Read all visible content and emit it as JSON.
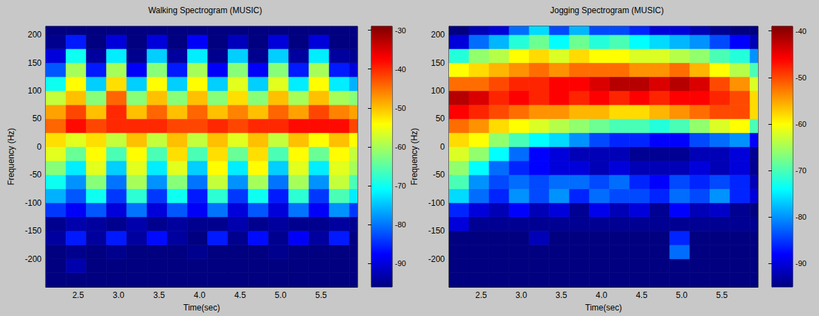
{
  "chart_data": [
    {
      "type": "heatmap",
      "title": "Walking Spectrogram (MUSIC)",
      "xlabel": "Time(sec)",
      "ylabel": "Frequency (Hz)",
      "xlim": [
        2.1,
        5.95
      ],
      "xticks": [
        {
          "value": 2.5,
          "label": "2.5"
        },
        {
          "value": 3,
          "label": "3.0"
        },
        {
          "value": 3.5,
          "label": "3.5"
        },
        {
          "value": 4,
          "label": "4.0"
        },
        {
          "value": 4.5,
          "label": "4.5"
        },
        {
          "value": 5,
          "label": "5.0"
        },
        {
          "value": 5.5,
          "label": "5.5"
        }
      ],
      "ylim": [
        -250,
        215
      ],
      "yticks": [
        -200,
        -150,
        -100,
        -50,
        0,
        50,
        100,
        150,
        200
      ],
      "grid": false,
      "x_bins": [
        2.1,
        2.35,
        2.6,
        2.85,
        3.1,
        3.35,
        3.6,
        3.85,
        4.1,
        4.35,
        4.6,
        4.85,
        5.1,
        5.35,
        5.6,
        5.85,
        5.95
      ],
      "y_bins": [
        -250,
        -225,
        -200,
        -175,
        -150,
        -125,
        -100,
        -75,
        -50,
        -25,
        0,
        25,
        50,
        75,
        100,
        125,
        150,
        175,
        200,
        225
      ],
      "z": [
        [
          -96,
          -96,
          -96,
          -96,
          -96,
          -96,
          -96,
          -96,
          -96,
          -96,
          -96,
          -96,
          -96,
          -96,
          -96,
          -96
        ],
        [
          -96,
          -93,
          -96,
          -96,
          -96,
          -96,
          -96,
          -96,
          -96,
          -96,
          -96,
          -96,
          -96,
          -96,
          -96,
          -96
        ],
        [
          -96,
          -95,
          -96,
          -95,
          -96,
          -96,
          -96,
          -95,
          -96,
          -96,
          -96,
          -95,
          -96,
          -96,
          -96,
          -96
        ],
        [
          -94,
          -86,
          -94,
          -86,
          -94,
          -87,
          -94,
          -96,
          -86,
          -95,
          -87,
          -95,
          -88,
          -94,
          -86,
          -96
        ],
        [
          -95,
          -93,
          -94,
          -95,
          -93,
          -95,
          -94,
          -95,
          -95,
          -93,
          -95,
          -94,
          -95,
          -95,
          -94,
          -95
        ],
        [
          -84,
          -88,
          -82,
          -90,
          -80,
          -90,
          -82,
          -88,
          -80,
          -90,
          -82,
          -90,
          -80,
          -88,
          -78,
          -84
        ],
        [
          -76,
          -82,
          -70,
          -84,
          -68,
          -84,
          -70,
          -86,
          -68,
          -84,
          -70,
          -86,
          -68,
          -84,
          -66,
          -72
        ],
        [
          -70,
          -78,
          -62,
          -80,
          -60,
          -78,
          -62,
          -80,
          -58,
          -78,
          -60,
          -80,
          -60,
          -78,
          -58,
          -66
        ],
        [
          -62,
          -72,
          -56,
          -74,
          -56,
          -72,
          -56,
          -74,
          -54,
          -72,
          -54,
          -74,
          -56,
          -72,
          -56,
          -60
        ],
        [
          -56,
          -64,
          -54,
          -66,
          -54,
          -66,
          -52,
          -66,
          -52,
          -64,
          -52,
          -66,
          -54,
          -64,
          -54,
          -58
        ],
        [
          -52,
          -56,
          -52,
          -58,
          -50,
          -58,
          -50,
          -58,
          -50,
          -56,
          -50,
          -58,
          -50,
          -54,
          -50,
          -54
        ],
        [
          -44,
          -38,
          -42,
          -40,
          -40,
          -40,
          -42,
          -42,
          -40,
          -42,
          -40,
          -40,
          -38,
          -38,
          -38,
          -42
        ],
        [
          -48,
          -42,
          -50,
          -40,
          -50,
          -44,
          -50,
          -44,
          -50,
          -46,
          -50,
          -44,
          -48,
          -42,
          -46,
          -48
        ],
        [
          -58,
          -50,
          -62,
          -44,
          -62,
          -50,
          -62,
          -50,
          -62,
          -52,
          -62,
          -50,
          -60,
          -50,
          -60,
          -62
        ],
        [
          -70,
          -54,
          -74,
          -52,
          -74,
          -54,
          -74,
          -54,
          -74,
          -56,
          -74,
          -56,
          -72,
          -54,
          -72,
          -76
        ],
        [
          -82,
          -60,
          -86,
          -60,
          -88,
          -62,
          -86,
          -60,
          -88,
          -62,
          -88,
          -62,
          -86,
          -60,
          -86,
          -90
        ],
        [
          -90,
          -70,
          -94,
          -72,
          -95,
          -74,
          -94,
          -72,
          -95,
          -74,
          -95,
          -74,
          -94,
          -72,
          -94,
          -95
        ],
        [
          -95,
          -86,
          -96,
          -90,
          -96,
          -90,
          -96,
          -88,
          -96,
          -92,
          -96,
          -90,
          -96,
          -90,
          -96,
          -96
        ],
        [
          -96,
          -96,
          -96,
          -96,
          -96,
          -96,
          -96,
          -96,
          -96,
          -96,
          -96,
          -96,
          -96,
          -96,
          -96,
          -96
        ]
      ],
      "colorbar_lim": [
        -96,
        -29
      ],
      "colorbar_ticks": [
        -90,
        -80,
        -70,
        -60,
        -50,
        -40,
        -30
      ]
    },
    {
      "type": "heatmap",
      "title": "Jogging Spectrogram (MUSIC)",
      "xlabel": "Time(sec)",
      "ylabel": "Frequency (Hz)",
      "xlim": [
        2.1,
        5.95
      ],
      "xticks": [
        {
          "value": 2.5,
          "label": "2.5"
        },
        {
          "value": 3,
          "label": "3.0"
        },
        {
          "value": 3.5,
          "label": "3.5"
        },
        {
          "value": 4,
          "label": "4.0"
        },
        {
          "value": 4.5,
          "label": "4.5"
        },
        {
          "value": 5,
          "label": "5.0"
        },
        {
          "value": 5.5,
          "label": "5.5"
        }
      ],
      "ylim": [
        -250,
        215
      ],
      "yticks": [
        -200,
        -150,
        -100,
        -50,
        0,
        50,
        100,
        150,
        200
      ],
      "grid": false,
      "x_bins": [
        2.1,
        2.35,
        2.6,
        2.85,
        3.1,
        3.35,
        3.6,
        3.85,
        4.1,
        4.35,
        4.6,
        4.85,
        5.1,
        5.35,
        5.6,
        5.85,
        5.95
      ],
      "y_bins": [
        -250,
        -225,
        -200,
        -175,
        -150,
        -125,
        -100,
        -75,
        -50,
        -25,
        0,
        25,
        50,
        75,
        100,
        125,
        150,
        175,
        200,
        225
      ],
      "z": [
        [
          -95,
          -95,
          -95,
          -95,
          -95,
          -95,
          -95,
          -95,
          -95,
          -95,
          -95,
          -95,
          -95,
          -95,
          -95,
          -95
        ],
        [
          -95,
          -95,
          -95,
          -95,
          -95,
          -95,
          -95,
          -95,
          -95,
          -95,
          -95,
          -95,
          -95,
          -95,
          -95,
          -95
        ],
        [
          -95,
          -95,
          -95,
          -95,
          -95,
          -95,
          -95,
          -95,
          -95,
          -95,
          -95,
          -82,
          -95,
          -95,
          -95,
          -95
        ],
        [
          -95,
          -95,
          -95,
          -95,
          -92,
          -95,
          -95,
          -95,
          -95,
          -95,
          -95,
          -86,
          -95,
          -95,
          -95,
          -95
        ],
        [
          -90,
          -94,
          -94,
          -94,
          -94,
          -94,
          -94,
          -94,
          -94,
          -94,
          -94,
          -94,
          -94,
          -94,
          -94,
          -94
        ],
        [
          -86,
          -90,
          -92,
          -88,
          -92,
          -90,
          -94,
          -89,
          -92,
          -90,
          -94,
          -88,
          -92,
          -91,
          -94,
          -95
        ],
        [
          -76,
          -82,
          -86,
          -80,
          -84,
          -80,
          -86,
          -82,
          -84,
          -84,
          -86,
          -82,
          -84,
          -80,
          -86,
          -90
        ],
        [
          -70,
          -80,
          -84,
          -82,
          -84,
          -82,
          -82,
          -84,
          -82,
          -86,
          -88,
          -84,
          -86,
          -84,
          -86,
          -92
        ],
        [
          -66,
          -74,
          -82,
          -86,
          -88,
          -90,
          -90,
          -92,
          -90,
          -92,
          -92,
          -92,
          -90,
          -92,
          -90,
          -94
        ],
        [
          -62,
          -66,
          -74,
          -82,
          -88,
          -90,
          -92,
          -92,
          -92,
          -94,
          -94,
          -94,
          -92,
          -92,
          -90,
          -94
        ],
        [
          -58,
          -60,
          -66,
          -70,
          -74,
          -76,
          -80,
          -84,
          -86,
          -86,
          -88,
          -88,
          -84,
          -82,
          -80,
          -88
        ],
        [
          -52,
          -54,
          -58,
          -60,
          -62,
          -64,
          -66,
          -68,
          -70,
          -70,
          -72,
          -70,
          -66,
          -62,
          -60,
          -70
        ],
        [
          -46,
          -48,
          -50,
          -52,
          -54,
          -54,
          -56,
          -56,
          -58,
          -58,
          -56,
          -54,
          -52,
          -50,
          -50,
          -58
        ],
        [
          -42,
          -44,
          -48,
          -46,
          -48,
          -46,
          -48,
          -46,
          -48,
          -46,
          -48,
          -46,
          -46,
          -48,
          -50,
          -58
        ],
        [
          -52,
          -52,
          -50,
          -48,
          -48,
          -46,
          -46,
          -44,
          -42,
          -42,
          -44,
          -42,
          -44,
          -50,
          -54,
          -62
        ],
        [
          -60,
          -58,
          -56,
          -54,
          -52,
          -54,
          -52,
          -52,
          -52,
          -54,
          -54,
          -52,
          -56,
          -60,
          -64,
          -70
        ],
        [
          -72,
          -66,
          -64,
          -60,
          -58,
          -62,
          -58,
          -60,
          -60,
          -62,
          -62,
          -64,
          -66,
          -70,
          -72,
          -80
        ],
        [
          -90,
          -82,
          -78,
          -72,
          -68,
          -74,
          -68,
          -72,
          -70,
          -74,
          -76,
          -78,
          -80,
          -84,
          -88,
          -92
        ],
        [
          -95,
          -92,
          -90,
          -82,
          -76,
          -84,
          -78,
          -84,
          -84,
          -86,
          -90,
          -90,
          -92,
          -94,
          -95,
          -95
        ]
      ],
      "colorbar_lim": [
        -95,
        -39
      ],
      "colorbar_ticks": [
        -90,
        -80,
        -70,
        -60,
        -50,
        -40
      ]
    }
  ]
}
